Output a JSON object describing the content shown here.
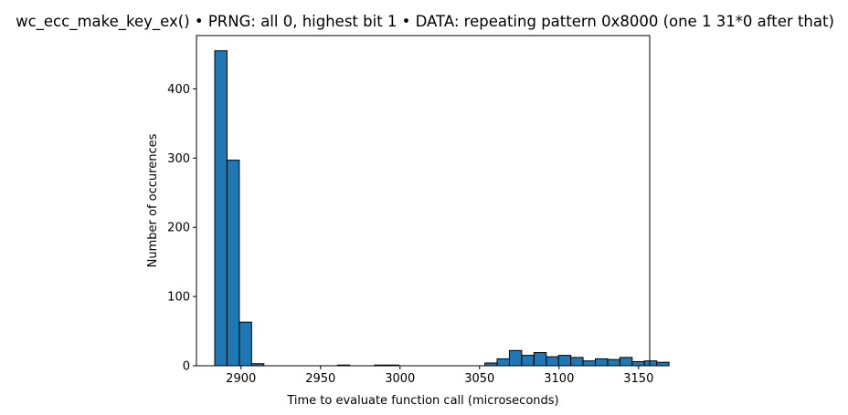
{
  "chart_data": {
    "type": "bar",
    "title": "wc_ecc_make_key_ex() • PRNG: all 0, highest bit 1 • DATA: repeating pattern 0x8000 (one 1 31*0 after that)",
    "xlabel": "Time to evaluate function call (microseconds)",
    "ylabel": "Number of occurences",
    "bin_start": 2883.5,
    "bin_width": 7.72,
    "values": [
      455,
      297,
      63,
      3,
      0,
      0,
      0,
      0,
      0,
      0,
      1,
      0,
      0,
      1,
      1,
      0,
      0,
      0,
      0,
      0,
      0,
      0,
      4,
      10,
      22,
      15,
      19,
      13,
      15,
      12,
      7,
      10,
      9,
      12,
      6,
      7,
      5
    ],
    "xlim": [
      2872,
      3157
    ],
    "ylim": [
      0,
      477
    ],
    "xticks": [
      2900,
      2950,
      3000,
      3050,
      3100,
      3150
    ],
    "yticks": [
      0,
      100,
      200,
      300,
      400
    ],
    "bar_color": "#1f77b4",
    "edge_color": "#000000",
    "grid": false,
    "legend": false
  }
}
